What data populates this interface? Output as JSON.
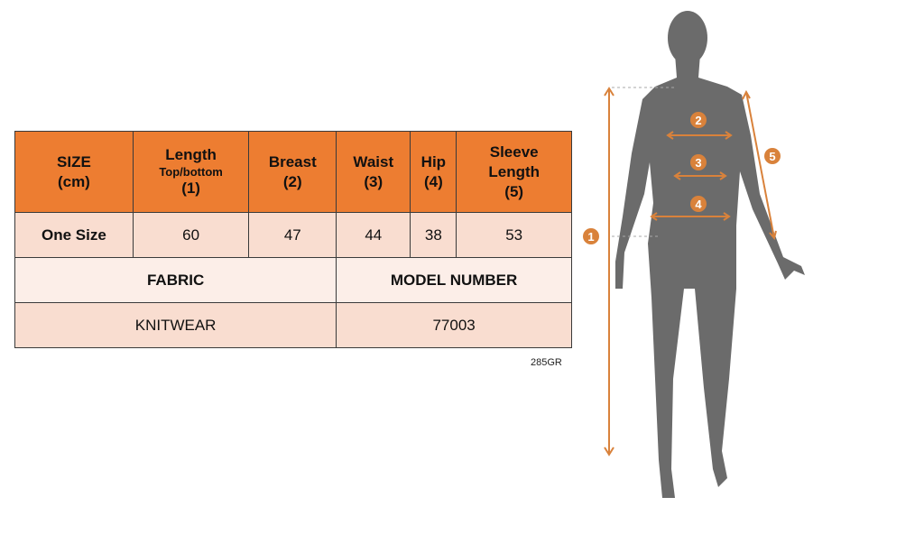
{
  "table": {
    "headers": [
      {
        "main": "SIZE",
        "sub": "",
        "num": "(cm)"
      },
      {
        "main": "Length",
        "sub": "Top/bottom",
        "num": "(1)"
      },
      {
        "main": "Breast",
        "sub": "",
        "num": "(2)"
      },
      {
        "main": "Waist",
        "sub": "",
        "num": "(3)"
      },
      {
        "main": "Hip",
        "sub": "",
        "num": "(4)"
      },
      {
        "main": "Sleeve Length",
        "sub": "",
        "num": "(5)"
      }
    ],
    "row": [
      "One Size",
      "60",
      "47",
      "44",
      "38",
      "53"
    ],
    "fabric_label": "FABRIC",
    "model_label": "MODEL NUMBER",
    "fabric_value": "KNITWEAR",
    "model_value": "77003"
  },
  "code": "285GR",
  "figure": {
    "markers": [
      "1",
      "2",
      "3",
      "4",
      "5"
    ],
    "accent_color": "#D9823B",
    "silhouette_color": "#6b6b6b"
  }
}
